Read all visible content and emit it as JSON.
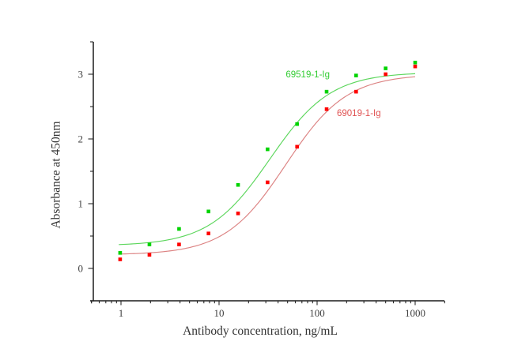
{
  "figure": {
    "background_color": "#ffffff",
    "description": "ELISA antibody titration curves"
  },
  "chart_data": {
    "type": "scatter",
    "title": "",
    "xlabel": "Antibody concentration, ng/mL",
    "ylabel": "Absorbance at 450nm",
    "x_scale": "log",
    "xlim": [
      0.5,
      2000
    ],
    "ylim": [
      -0.5,
      3.5
    ],
    "grid": false,
    "legend_position": "inline-annotations",
    "axis_color": "#1c1c1c",
    "tick_label_color": "#404040",
    "x_major_ticks": [
      1,
      10,
      100,
      1000
    ],
    "x_major_tick_labels": [
      "1",
      "10",
      "100",
      "1000"
    ],
    "y_major_ticks": [
      0,
      1,
      2,
      3
    ],
    "y_major_tick_labels": [
      "0",
      "1",
      "2",
      "3"
    ],
    "y_minor_ticks": [
      -0.5,
      0.5,
      1.5,
      2.5,
      3.5
    ],
    "concentrations_ng_ml": [
      0.98,
      1.95,
      3.91,
      7.81,
      15.63,
      31.25,
      62.5,
      125,
      250,
      500,
      1000
    ],
    "series": [
      {
        "name": "69519-1-Ig",
        "marker": "square",
        "marker_color": "#00d300",
        "curve_color": "#5cd65c",
        "label_color": "#33cc33",
        "absorbance": [
          0.24,
          0.37,
          0.61,
          0.88,
          1.29,
          1.84,
          2.23,
          2.73,
          2.98,
          3.09,
          3.18
        ],
        "fit_4pl": {
          "bottom": 0.35,
          "top": 3.03,
          "ec50": 33,
          "hill": 1.4
        }
      },
      {
        "name": "69019-1-Ig",
        "marker": "square",
        "marker_color": "#ff0000",
        "curve_color": "#dc8282",
        "label_color": "#e05252",
        "absorbance": [
          0.14,
          0.21,
          0.37,
          0.54,
          0.85,
          1.33,
          1.88,
          2.46,
          2.73,
          3.0,
          3.12
        ],
        "fit_4pl": {
          "bottom": 0.21,
          "top": 3.0,
          "ec50": 48,
          "hill": 1.4
        }
      }
    ]
  }
}
